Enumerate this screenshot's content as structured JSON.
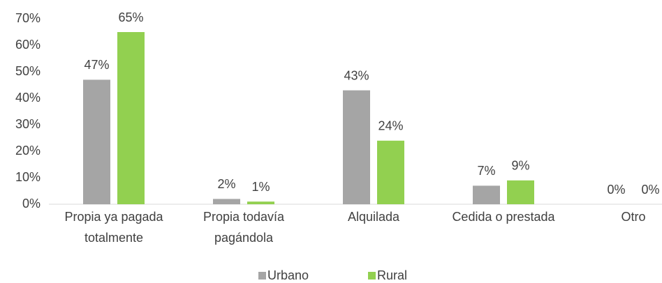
{
  "chart_data": {
    "type": "bar",
    "categories": [
      "Propia ya pagada totalmente",
      "Propia todavía pagándola",
      "Alquilada",
      "Cedida o prestada",
      "Otro"
    ],
    "series": [
      {
        "name": "Urbano",
        "color": "#a5a5a5",
        "values": [
          47,
          2,
          43,
          7,
          0
        ],
        "value_labels": [
          "47%",
          "2%",
          "43%",
          "7%",
          "0%"
        ]
      },
      {
        "name": "Rural",
        "color": "#92d050",
        "values": [
          65,
          1,
          24,
          9,
          0
        ],
        "value_labels": [
          "65%",
          "1%",
          "24%",
          "9%",
          "0%"
        ]
      }
    ],
    "ylim": [
      0,
      70
    ],
    "yticks": [
      {
        "value": 0,
        "label": "0%"
      },
      {
        "value": 10,
        "label": "10%"
      },
      {
        "value": 20,
        "label": "20%"
      },
      {
        "value": 30,
        "label": "30%"
      },
      {
        "value": 40,
        "label": "40%"
      },
      {
        "value": 50,
        "label": "50%"
      },
      {
        "value": 60,
        "label": "60%"
      },
      {
        "value": 70,
        "label": "70%"
      }
    ],
    "grid": false,
    "legend": "bottom"
  }
}
